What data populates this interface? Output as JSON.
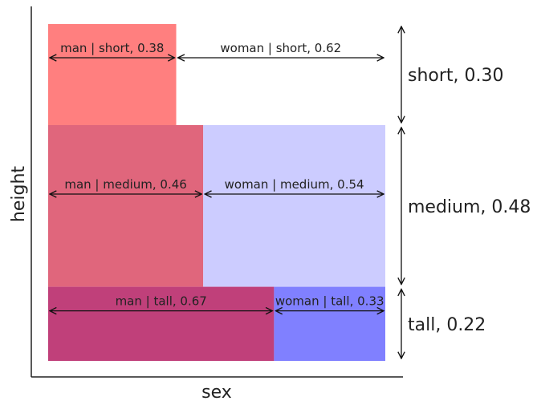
{
  "chart_data": {
    "type": "mosaic",
    "xlabel": "sex",
    "ylabel": "height",
    "rows": [
      {
        "name": "short",
        "proportion": 0.3,
        "label": "short, 0.30",
        "segments": [
          {
            "name": "man",
            "proportion": 0.38,
            "label": "man | short, 0.38",
            "color": "#ff7f7f"
          },
          {
            "name": "woman",
            "proportion": 0.62,
            "label": "woman | short, 0.62",
            "color": "#ffffff"
          }
        ]
      },
      {
        "name": "medium",
        "proportion": 0.48,
        "label": "medium, 0.48",
        "segments": [
          {
            "name": "man",
            "proportion": 0.46,
            "label": "man | medium, 0.46",
            "color": "#e0667c"
          },
          {
            "name": "woman",
            "proportion": 0.54,
            "label": "woman | medium, 0.54",
            "color": "#ccccff"
          }
        ]
      },
      {
        "name": "tall",
        "proportion": 0.22,
        "label": "tall, 0.22",
        "segments": [
          {
            "name": "man",
            "proportion": 0.67,
            "label": "man | tall, 0.67",
            "color": "#c0407a"
          },
          {
            "name": "woman",
            "proportion": 0.33,
            "label": "woman | tall, 0.33",
            "color": "#8080ff"
          }
        ]
      }
    ],
    "grid": false,
    "legend": "none"
  }
}
